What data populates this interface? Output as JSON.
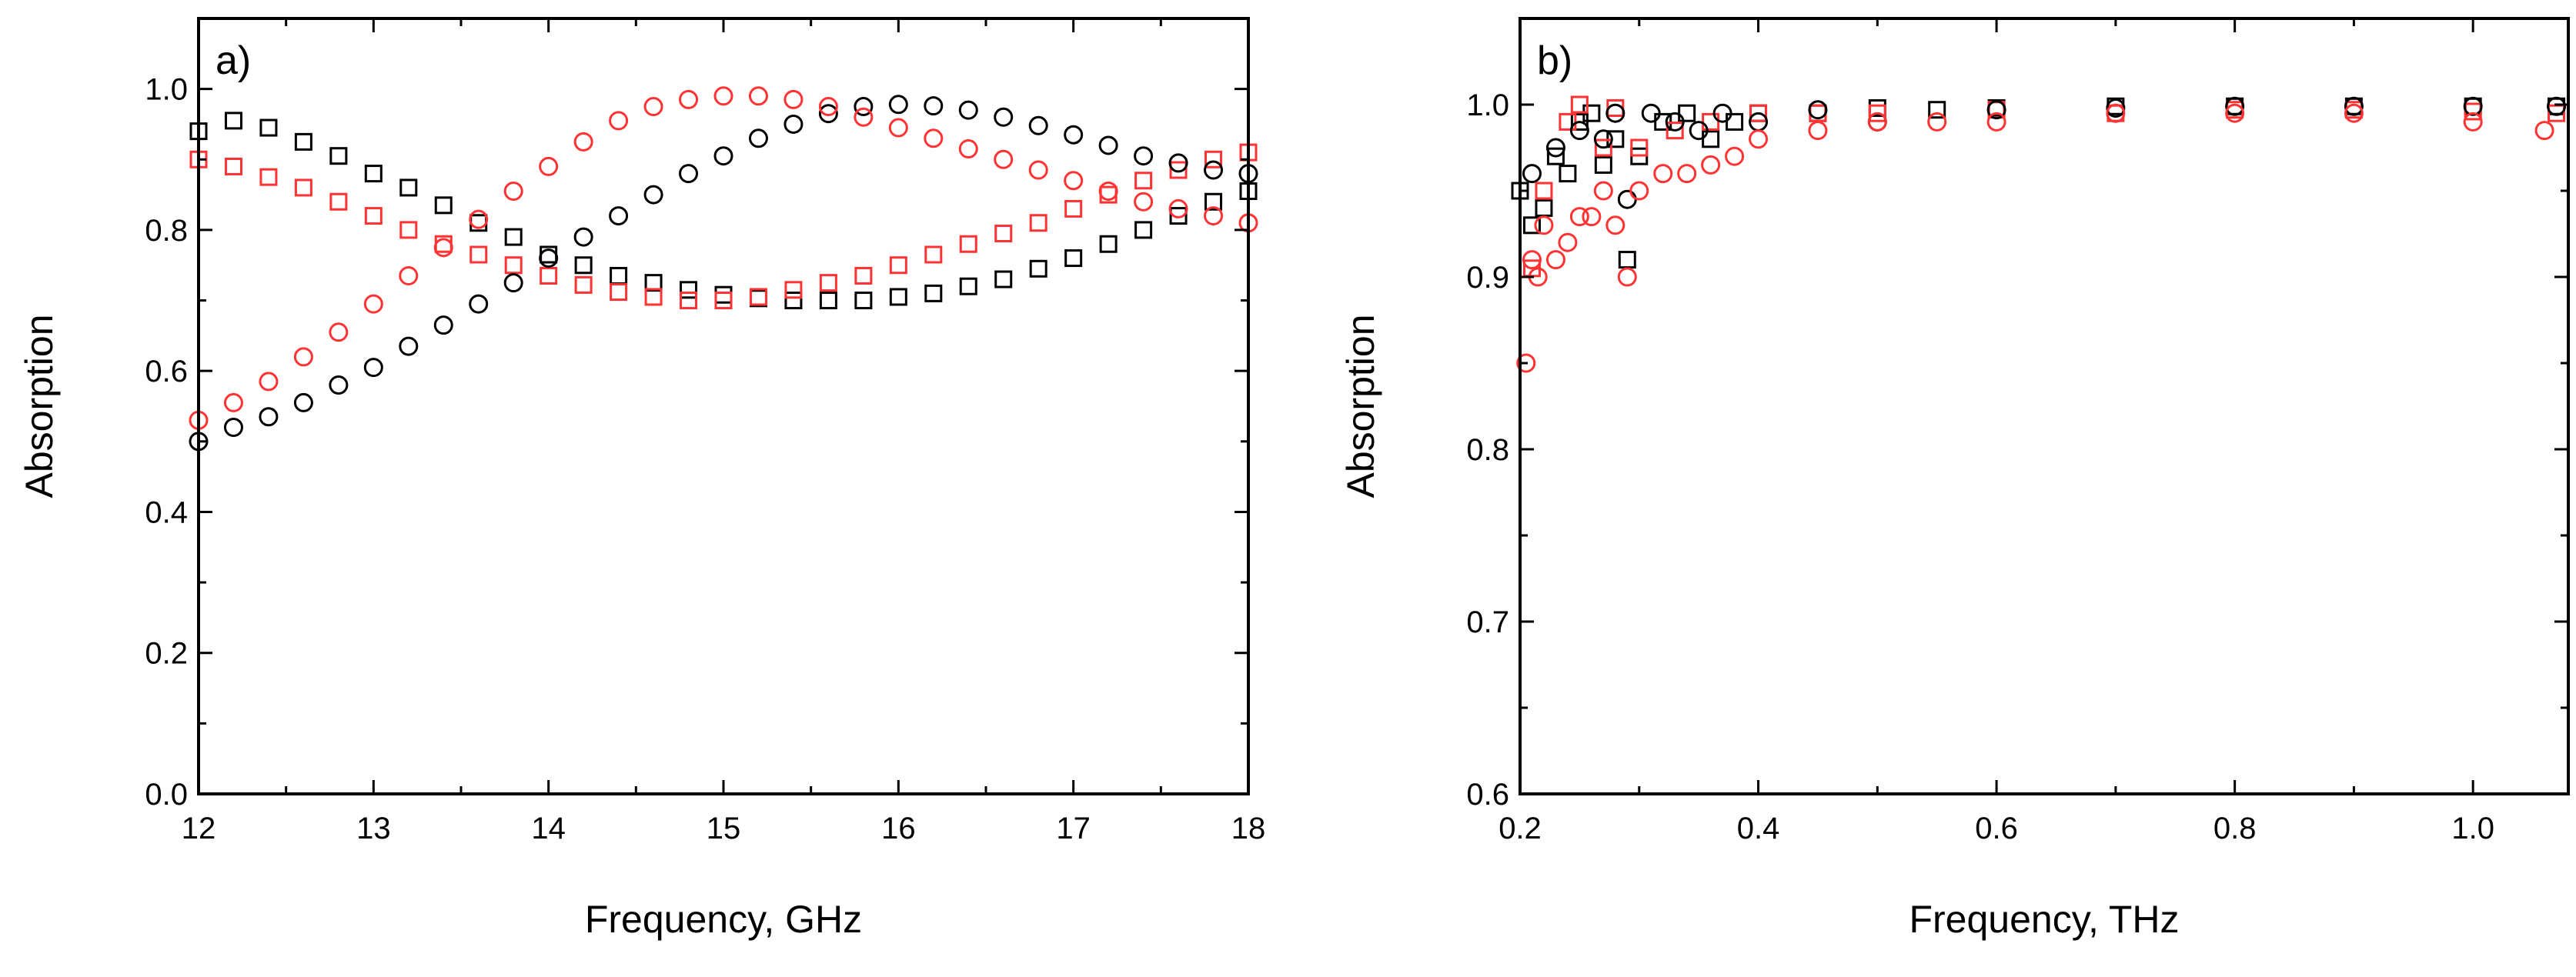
{
  "chart_data": [
    {
      "type": "scatter",
      "panel_label": "a)",
      "xlabel": "Frequency, GHz",
      "ylabel": "Absorption",
      "xlim": [
        12,
        18
      ],
      "ylim": [
        0.0,
        1.1
      ],
      "xticks": [
        12,
        13,
        14,
        15,
        16,
        17,
        18
      ],
      "xtick_labels": [
        "12",
        "13",
        "14",
        "15",
        "16",
        "17",
        "18"
      ],
      "yticks": [
        0.0,
        0.2,
        0.4,
        0.6,
        0.8,
        1.0
      ],
      "ytick_labels": [
        "0.0",
        "0.2",
        "0.4",
        "0.6",
        "0.8",
        "1.0"
      ],
      "series": [
        {
          "name": "black squares",
          "color": "#000000",
          "marker": "square",
          "x": [
            12.0,
            12.2,
            12.4,
            12.6,
            12.8,
            13.0,
            13.2,
            13.4,
            13.6,
            13.8,
            14.0,
            14.2,
            14.4,
            14.6,
            14.8,
            15.0,
            15.2,
            15.4,
            15.6,
            15.8,
            16.0,
            16.2,
            16.4,
            16.6,
            16.8,
            17.0,
            17.2,
            17.4,
            17.6,
            17.8,
            18.0
          ],
          "y": [
            0.94,
            0.955,
            0.945,
            0.925,
            0.905,
            0.88,
            0.86,
            0.835,
            0.81,
            0.79,
            0.765,
            0.75,
            0.735,
            0.725,
            0.715,
            0.708,
            0.703,
            0.7,
            0.7,
            0.7,
            0.705,
            0.71,
            0.72,
            0.73,
            0.745,
            0.76,
            0.78,
            0.8,
            0.82,
            0.84,
            0.855
          ]
        },
        {
          "name": "red squares",
          "color": "#ff3333",
          "marker": "square",
          "x": [
            12.0,
            12.2,
            12.4,
            12.6,
            12.8,
            13.0,
            13.2,
            13.4,
            13.6,
            13.8,
            14.0,
            14.2,
            14.4,
            14.6,
            14.8,
            15.0,
            15.2,
            15.4,
            15.6,
            15.8,
            16.0,
            16.2,
            16.4,
            16.6,
            16.8,
            17.0,
            17.2,
            17.4,
            17.6,
            17.8,
            18.0
          ],
          "y": [
            0.9,
            0.89,
            0.875,
            0.86,
            0.84,
            0.82,
            0.8,
            0.78,
            0.765,
            0.75,
            0.735,
            0.722,
            0.712,
            0.705,
            0.7,
            0.7,
            0.705,
            0.715,
            0.725,
            0.735,
            0.75,
            0.765,
            0.78,
            0.795,
            0.81,
            0.83,
            0.85,
            0.87,
            0.885,
            0.9,
            0.91
          ]
        },
        {
          "name": "black circles",
          "color": "#000000",
          "marker": "circle",
          "x": [
            12.0,
            12.2,
            12.4,
            12.6,
            12.8,
            13.0,
            13.2,
            13.4,
            13.6,
            13.8,
            14.0,
            14.2,
            14.4,
            14.6,
            14.8,
            15.0,
            15.2,
            15.4,
            15.6,
            15.8,
            16.0,
            16.2,
            16.4,
            16.6,
            16.8,
            17.0,
            17.2,
            17.4,
            17.6,
            17.8,
            18.0
          ],
          "y": [
            0.5,
            0.52,
            0.535,
            0.555,
            0.58,
            0.605,
            0.635,
            0.665,
            0.695,
            0.725,
            0.76,
            0.79,
            0.82,
            0.85,
            0.88,
            0.905,
            0.93,
            0.95,
            0.965,
            0.975,
            0.978,
            0.976,
            0.97,
            0.96,
            0.948,
            0.935,
            0.92,
            0.905,
            0.895,
            0.885,
            0.88
          ]
        },
        {
          "name": "red circles",
          "color": "#ff3333",
          "marker": "circle",
          "x": [
            12.0,
            12.2,
            12.4,
            12.6,
            12.8,
            13.0,
            13.2,
            13.4,
            13.6,
            13.8,
            14.0,
            14.2,
            14.4,
            14.6,
            14.8,
            15.0,
            15.2,
            15.4,
            15.6,
            15.8,
            16.0,
            16.2,
            16.4,
            16.6,
            16.8,
            17.0,
            17.2,
            17.4,
            17.6,
            17.8,
            18.0
          ],
          "y": [
            0.53,
            0.555,
            0.585,
            0.62,
            0.655,
            0.695,
            0.735,
            0.775,
            0.815,
            0.855,
            0.89,
            0.925,
            0.955,
            0.975,
            0.985,
            0.99,
            0.99,
            0.985,
            0.975,
            0.96,
            0.945,
            0.93,
            0.915,
            0.9,
            0.885,
            0.87,
            0.855,
            0.84,
            0.83,
            0.82,
            0.81
          ]
        }
      ]
    },
    {
      "type": "scatter",
      "panel_label": "b)",
      "xlabel": "Frequency, THz",
      "ylabel": "Absorption",
      "xlim": [
        0.2,
        1.08
      ],
      "ylim": [
        0.6,
        1.05
      ],
      "xticks": [
        0.2,
        0.4,
        0.6,
        0.8,
        1.0
      ],
      "xtick_labels": [
        "0.2",
        "0.4",
        "0.6",
        "0.8",
        "1.0"
      ],
      "yticks": [
        0.6,
        0.7,
        0.8,
        0.9,
        1.0
      ],
      "ytick_labels": [
        "0.6",
        "0.7",
        "0.8",
        "0.9",
        "1.0"
      ],
      "series": [
        {
          "name": "black squares",
          "color": "#000000",
          "marker": "square",
          "x": [
            0.2,
            0.21,
            0.22,
            0.23,
            0.24,
            0.25,
            0.26,
            0.27,
            0.28,
            0.29,
            0.3,
            0.32,
            0.34,
            0.36,
            0.38,
            0.4,
            0.45,
            0.5,
            0.55,
            0.6,
            0.7,
            0.8,
            0.9,
            1.0,
            1.07
          ],
          "y": [
            0.95,
            0.93,
            0.94,
            0.97,
            0.96,
            0.99,
            0.995,
            0.965,
            0.98,
            0.91,
            0.97,
            0.99,
            0.995,
            0.98,
            0.99,
            0.995,
            0.995,
            0.998,
            0.997,
            0.998,
            0.999,
            0.999,
            0.999,
            0.999,
            0.999
          ]
        },
        {
          "name": "red squares",
          "color": "#ff3333",
          "marker": "square",
          "x": [
            0.21,
            0.22,
            0.24,
            0.25,
            0.27,
            0.28,
            0.3,
            0.33,
            0.36,
            0.4,
            0.45,
            0.5,
            0.6,
            0.7,
            0.8,
            0.9,
            1.0,
            1.07
          ],
          "y": [
            0.905,
            0.95,
            0.99,
            1.0,
            0.975,
            0.998,
            0.975,
            0.985,
            0.99,
            0.995,
            0.995,
            0.995,
            0.997,
            0.995,
            0.997,
            0.997,
            0.996,
            0.995
          ]
        },
        {
          "name": "black circles",
          "color": "#000000",
          "marker": "circle",
          "x": [
            0.21,
            0.23,
            0.25,
            0.27,
            0.28,
            0.29,
            0.31,
            0.33,
            0.35,
            0.37,
            0.4,
            0.45,
            0.5,
            0.6,
            0.7,
            0.8,
            0.9,
            1.0,
            1.07
          ],
          "y": [
            0.96,
            0.975,
            0.985,
            0.98,
            0.995,
            0.945,
            0.995,
            0.99,
            0.985,
            0.995,
            0.99,
            0.997,
            0.99,
            0.997,
            0.998,
            0.999,
            0.999,
            0.999,
            0.999
          ]
        },
        {
          "name": "red circles",
          "color": "#ff3333",
          "marker": "circle",
          "x": [
            0.205,
            0.21,
            0.215,
            0.22,
            0.23,
            0.24,
            0.25,
            0.26,
            0.27,
            0.28,
            0.29,
            0.3,
            0.32,
            0.34,
            0.36,
            0.38,
            0.4,
            0.45,
            0.5,
            0.55,
            0.6,
            0.7,
            0.8,
            0.9,
            1.0,
            1.06
          ],
          "y": [
            0.85,
            0.91,
            0.9,
            0.93,
            0.91,
            0.92,
            0.935,
            0.935,
            0.95,
            0.93,
            0.9,
            0.95,
            0.96,
            0.96,
            0.965,
            0.97,
            0.98,
            0.985,
            0.99,
            0.99,
            0.99,
            0.995,
            0.995,
            0.995,
            0.99,
            0.985
          ]
        }
      ]
    }
  ]
}
